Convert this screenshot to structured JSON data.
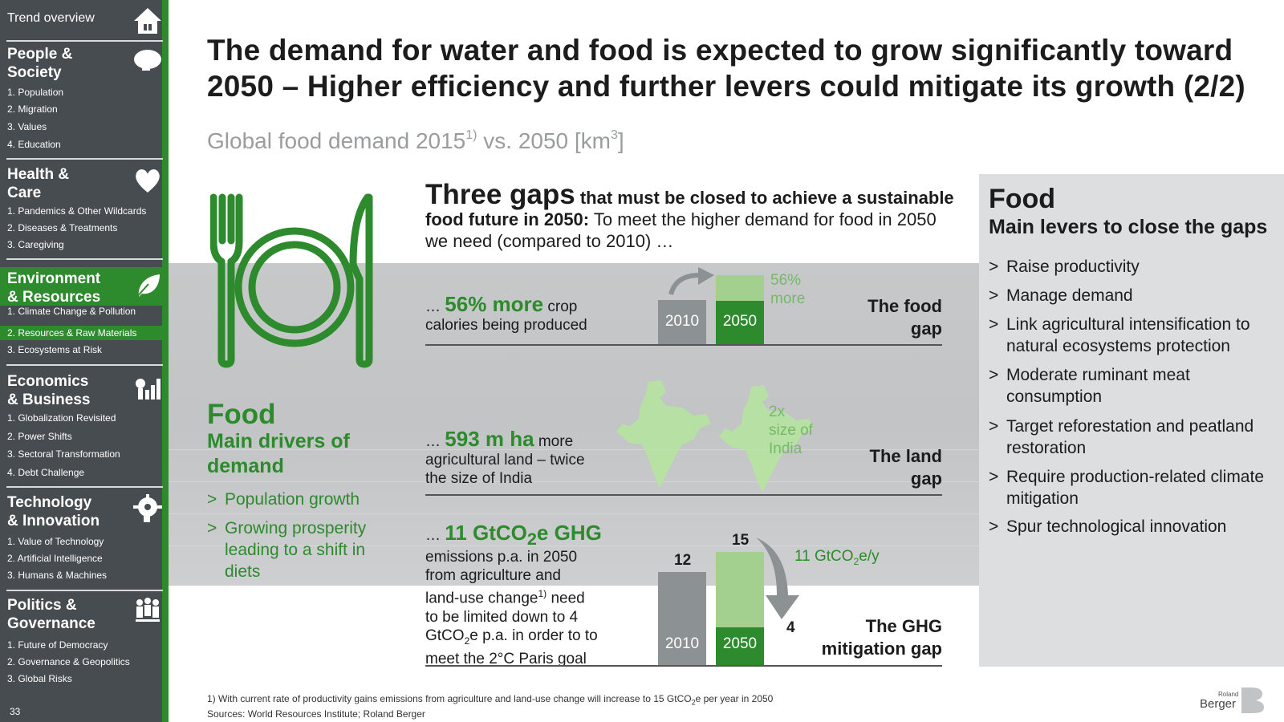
{
  "sidebar": {
    "trend": "Trend overview",
    "page_number": "33",
    "sections": [
      {
        "title_1": "People &",
        "title_2": "Society",
        "items": [
          "1. Population",
          "2. Migration",
          "3. Values",
          "4. Education"
        ],
        "icon": "head-icon"
      },
      {
        "title_1": "Health &",
        "title_2": "Care",
        "items": [
          "1. Pandemics & Other Wildcards",
          "2. Diseases & Treatments",
          "3. Caregiving"
        ],
        "icon": "heart-icon"
      },
      {
        "title_1": "Environment",
        "title_2": "& Resources",
        "items": [
          "1. Climate Change & Pollution",
          "2. Resources & Raw Materials",
          "3. Ecosystems at Risk"
        ],
        "icon": "leaf-icon"
      },
      {
        "title_1": "Economics",
        "title_2": "& Business",
        "items": [
          "1. Globalization Revisited",
          "2. Power Shifts",
          "3. Sectoral Transformation",
          "4. Debt Challenge"
        ],
        "icon": "growth-icon"
      },
      {
        "title_1": "Technology",
        "title_2": "& Innovation",
        "items": [
          "1. Value of Technology",
          "2. Artificial Intelligence",
          "3. Humans & Machines"
        ],
        "icon": "gear-brain-icon"
      },
      {
        "title_1": "Politics &",
        "title_2": "Governance",
        "items": [
          "1. Future of Democracy",
          "2. Governance & Geopolitics",
          "3. Global Risks"
        ],
        "icon": "people-icon"
      }
    ],
    "accent": "#2d8a2d"
  },
  "title_line1": "The demand for water and food is expected to grow significantly toward",
  "title_line2": "2050 – Higher efficiency and further levers could mitigate its growth (2/2)",
  "subtitle": {
    "main": "Global food demand 2015",
    "sup": "1)",
    "rest": " vs. 2050 [km",
    "unit_sup": "3",
    "end": "]"
  },
  "left": {
    "heading": "Food",
    "sub": "Main drivers of demand",
    "items": [
      "Population growth",
      "Growing prosperity leading to a shift in diets"
    ],
    "bullet": ">"
  },
  "gaps": {
    "big": "Three gaps",
    "bold": " that must be closed to achieve a sustainable food future in 2050:",
    "rest": " To meet the higher demand for food in 2050 we need (compared to 2010) …",
    "food": {
      "prefix": "… ",
      "highlight": "56% more",
      "text1": " crop",
      "text2": "calories being produced",
      "bar1": "2010",
      "bar2": "2050",
      "note": "56% more",
      "label1": "The food",
      "label2": "gap"
    },
    "land": {
      "prefix": "… ",
      "highlight": "593 m ha",
      "text1": " more",
      "text2": "agricultural land – twice",
      "text3": "the size of India",
      "note1": "2x",
      "note2": "size of",
      "note3": "India",
      "label1": "The land",
      "label2": "gap"
    },
    "ghg": {
      "prefix": "… ",
      "highlight": "11 GtCO",
      "highlight_sub": "2",
      "highlight_end": "e GHG",
      "l1": "emissions p.a. in 2050",
      "l2": "from agriculture and",
      "l3a": "land-use change",
      "l3sup": "1)",
      "l3b": " need",
      "l4": "to be limited down to 4",
      "l5a": "GtCO",
      "l5sub": "2",
      "l5b": "e p.a. in order to to",
      "l6": "meet the 2°C Paris goal",
      "v2010": "12",
      "v2050": "15",
      "vtarget": "4",
      "bar1": "2010",
      "bar2": "2050",
      "note_a": "11 GtCO",
      "note_sub": "2",
      "note_b": "e/y",
      "label1": "The GHG",
      "label2": "mitigation gap"
    }
  },
  "right": {
    "title": "Food",
    "sub": "Main levers to close the gaps",
    "bullet": ">",
    "items": [
      "Raise productivity",
      "Manage demand",
      "Link agricultural intensification to natural ecosystems protection",
      "Moderate ruminant meat consumption",
      "Target reforestation and peatland restoration",
      "Require production-related climate mitigation",
      "Spur technological innovation"
    ]
  },
  "footnote": {
    "l1a": "1) With current rate of productivity gains emissions from agriculture and land-use change will increase to 15 GtCO",
    "l1sub": "2",
    "l1b": "e per year in 2050",
    "l2": "Sources: World Resources Institute; Roland Berger"
  },
  "logo": {
    "top": "Roland",
    "bottom": "Berger"
  },
  "chart_data": [
    {
      "type": "bar",
      "title": "",
      "categories": [
        "2010",
        "2050"
      ],
      "values": [
        100,
        156
      ]
    },
    {
      "type": "bar",
      "title": "",
      "categories": [
        "2010",
        "2050"
      ],
      "values": [
        12,
        15
      ],
      "target": 4
    }
  ]
}
